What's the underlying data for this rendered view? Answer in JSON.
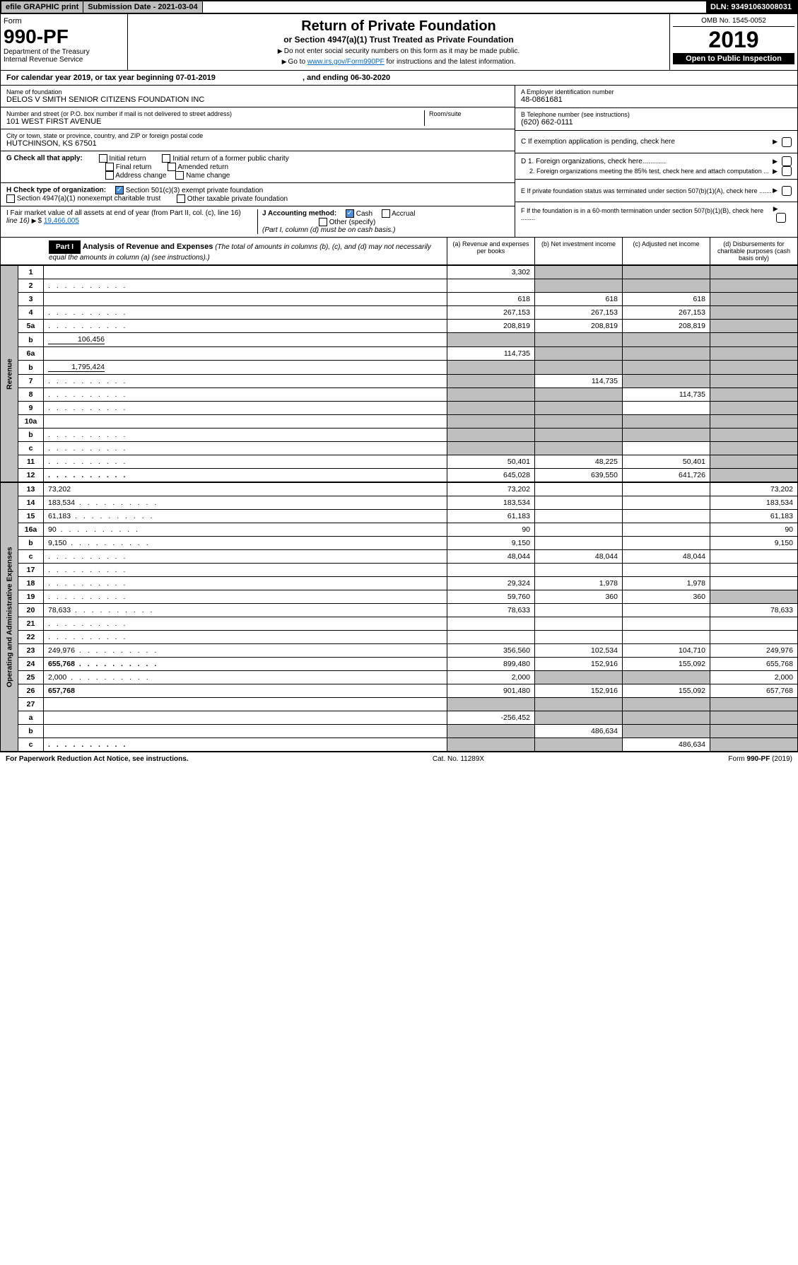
{
  "top": {
    "efile": "efile GRAPHIC print",
    "sub_date_label": "Submission Date - 2021-03-04",
    "dln": "DLN: 93491063008031"
  },
  "header": {
    "form_label": "Form",
    "form_no": "990-PF",
    "dept": "Department of the Treasury",
    "irs": "Internal Revenue Service",
    "title": "Return of Private Foundation",
    "subtitle": "or Section 4947(a)(1) Trust Treated as Private Foundation",
    "note1": "Do not enter social security numbers on this form as it may be made public.",
    "note2": "Go to ",
    "link": "www.irs.gov/Form990PF",
    "note3": " for instructions and the latest information.",
    "omb": "OMB No. 1545-0052",
    "year": "2019",
    "open": "Open to Public Inspection"
  },
  "cal_year": {
    "text": "For calendar year 2019, or tax year beginning 07-01-2019",
    "ending": ", and ending 06-30-2020"
  },
  "foundation": {
    "name_label": "Name of foundation",
    "name": "DELOS V SMITH SENIOR CITIZENS FOUNDATION INC",
    "addr_label": "Number and street (or P.O. box number if mail is not delivered to street address)",
    "addr": "101 WEST FIRST AVENUE",
    "room_label": "Room/suite",
    "city_label": "City or town, state or province, country, and ZIP or foreign postal code",
    "city": "HUTCHINSON, KS  67501"
  },
  "right_info": {
    "a_label": "A Employer identification number",
    "a_val": "48-0861681",
    "b_label": "B Telephone number (see instructions)",
    "b_val": "(620) 662-0111",
    "c_label": "C If exemption application is pending, check here",
    "d1": "D 1. Foreign organizations, check here............",
    "d2": "2. Foreign organizations meeting the 85% test, check here and attach computation ...",
    "e": "E  If private foundation status was terminated under section 507(b)(1)(A), check here .......",
    "f": "F  If the foundation is in a 60-month termination under section 507(b)(1)(B), check here ........"
  },
  "g": {
    "label": "G Check all that apply:",
    "opts": [
      "Initial return",
      "Initial return of a former public charity",
      "Final return",
      "Amended return",
      "Address change",
      "Name change"
    ]
  },
  "h": {
    "label": "H Check type of organization:",
    "opt1": "Section 501(c)(3) exempt private foundation",
    "opt2": "Section 4947(a)(1) nonexempt charitable trust",
    "opt3": "Other taxable private foundation"
  },
  "i": {
    "label": "I Fair market value of all assets at end of year (from Part II, col. (c), line 16)",
    "val": "19,466,005"
  },
  "j": {
    "label": "J Accounting method:",
    "cash": "Cash",
    "accrual": "Accrual",
    "other": "Other (specify)",
    "note": "(Part I, column (d) must be on cash basis.)"
  },
  "part1": {
    "label": "Part I",
    "title": "Analysis of Revenue and Expenses",
    "sub": "(The total of amounts in columns (b), (c), and (d) may not necessarily equal the amounts in column (a) (see instructions).)",
    "col_a": "(a) Revenue and expenses per books",
    "col_b": "(b) Net investment income",
    "col_c": "(c) Adjusted net income",
    "col_d": "(d) Disbursements for charitable purposes (cash basis only)"
  },
  "side": {
    "revenue": "Revenue",
    "expenses": "Operating and Administrative Expenses"
  },
  "rows": [
    {
      "n": "1",
      "d": "",
      "a": "3,302",
      "b": "",
      "c": "",
      "bs": true,
      "cs": true,
      "ds": true
    },
    {
      "n": "2",
      "d": "",
      "a": "",
      "b": "",
      "c": "",
      "bs": true,
      "cs": true,
      "ds": true,
      "dots": true
    },
    {
      "n": "3",
      "d": "",
      "a": "618",
      "b": "618",
      "c": "618",
      "ds": true
    },
    {
      "n": "4",
      "d": "",
      "a": "267,153",
      "b": "267,153",
      "c": "267,153",
      "ds": true,
      "dots": true
    },
    {
      "n": "5a",
      "d": "",
      "a": "208,819",
      "b": "208,819",
      "c": "208,819",
      "ds": true,
      "dots": true
    },
    {
      "n": "b",
      "d": "",
      "inline": "106,456",
      "a": "",
      "b": "",
      "c": "",
      "as": true,
      "bs": true,
      "cs": true,
      "ds": true
    },
    {
      "n": "6a",
      "d": "",
      "a": "114,735",
      "b": "",
      "c": "",
      "bs": true,
      "cs": true,
      "ds": true
    },
    {
      "n": "b",
      "d": "",
      "inline": "1,795,424",
      "a": "",
      "b": "",
      "c": "",
      "as": true,
      "bs": true,
      "cs": true,
      "ds": true
    },
    {
      "n": "7",
      "d": "",
      "a": "",
      "b": "114,735",
      "c": "",
      "as": true,
      "cs": true,
      "ds": true,
      "dots": true
    },
    {
      "n": "8",
      "d": "",
      "a": "",
      "b": "",
      "c": "114,735",
      "as": true,
      "bs": true,
      "ds": true,
      "dots": true
    },
    {
      "n": "9",
      "d": "",
      "a": "",
      "b": "",
      "c": "",
      "as": true,
      "bs": true,
      "ds": true,
      "dots": true
    },
    {
      "n": "10a",
      "d": "",
      "a": "",
      "b": "",
      "c": "",
      "as": true,
      "bs": true,
      "cs": true,
      "ds": true
    },
    {
      "n": "b",
      "d": "",
      "a": "",
      "b": "",
      "c": "",
      "as": true,
      "bs": true,
      "cs": true,
      "ds": true,
      "dots": true
    },
    {
      "n": "c",
      "d": "",
      "a": "",
      "b": "",
      "c": "",
      "as": true,
      "bs": true,
      "ds": true,
      "dots": true
    },
    {
      "n": "11",
      "d": "",
      "a": "50,401",
      "b": "48,225",
      "c": "50,401",
      "ds": true,
      "dots": true
    },
    {
      "n": "12",
      "d": "",
      "a": "645,028",
      "b": "639,550",
      "c": "641,726",
      "ds": true,
      "bold": true,
      "dots": true
    }
  ],
  "exp_rows": [
    {
      "n": "13",
      "d": "73,202",
      "a": "73,202",
      "b": "",
      "c": ""
    },
    {
      "n": "14",
      "d": "183,534",
      "a": "183,534",
      "b": "",
      "c": "",
      "dots": true
    },
    {
      "n": "15",
      "d": "61,183",
      "a": "61,183",
      "b": "",
      "c": "",
      "dots": true
    },
    {
      "n": "16a",
      "d": "90",
      "a": "90",
      "b": "",
      "c": "",
      "dots": true
    },
    {
      "n": "b",
      "d": "9,150",
      "a": "9,150",
      "b": "",
      "c": "",
      "dots": true
    },
    {
      "n": "c",
      "d": "",
      "a": "48,044",
      "b": "48,044",
      "c": "48,044",
      "dots": true
    },
    {
      "n": "17",
      "d": "",
      "a": "",
      "b": "",
      "c": "",
      "dots": true
    },
    {
      "n": "18",
      "d": "",
      "a": "29,324",
      "b": "1,978",
      "c": "1,978",
      "dots": true
    },
    {
      "n": "19",
      "d": "",
      "a": "59,760",
      "b": "360",
      "c": "360",
      "ds": true,
      "dots": true
    },
    {
      "n": "20",
      "d": "78,633",
      "a": "78,633",
      "b": "",
      "c": "",
      "dots": true
    },
    {
      "n": "21",
      "d": "",
      "a": "",
      "b": "",
      "c": "",
      "dots": true
    },
    {
      "n": "22",
      "d": "",
      "a": "",
      "b": "",
      "c": "",
      "dots": true
    },
    {
      "n": "23",
      "d": "249,976",
      "a": "356,560",
      "b": "102,534",
      "c": "104,710",
      "dots": true
    },
    {
      "n": "24",
      "d": "655,768",
      "a": "899,480",
      "b": "152,916",
      "c": "155,092",
      "bold": true,
      "dots": true
    },
    {
      "n": "25",
      "d": "2,000",
      "a": "2,000",
      "b": "",
      "c": "",
      "bs": true,
      "cs": true,
      "dots": true
    },
    {
      "n": "26",
      "d": "657,768",
      "a": "901,480",
      "b": "152,916",
      "c": "155,092",
      "bold": true
    },
    {
      "n": "27",
      "d": "",
      "a": "",
      "b": "",
      "c": "",
      "as": true,
      "bs": true,
      "cs": true,
      "ds": true
    },
    {
      "n": "a",
      "d": "",
      "a": "-256,452",
      "b": "",
      "c": "",
      "bs": true,
      "cs": true,
      "ds": true,
      "bold": true
    },
    {
      "n": "b",
      "d": "",
      "a": "",
      "b": "486,634",
      "c": "",
      "as": true,
      "cs": true,
      "ds": true,
      "bold": true
    },
    {
      "n": "c",
      "d": "",
      "a": "",
      "b": "",
      "c": "486,634",
      "as": true,
      "bs": true,
      "ds": true,
      "bold": true,
      "dots": true
    }
  ],
  "footer": {
    "left": "For Paperwork Reduction Act Notice, see instructions.",
    "mid": "Cat. No. 11289X",
    "right": "Form 990-PF (2019)"
  }
}
